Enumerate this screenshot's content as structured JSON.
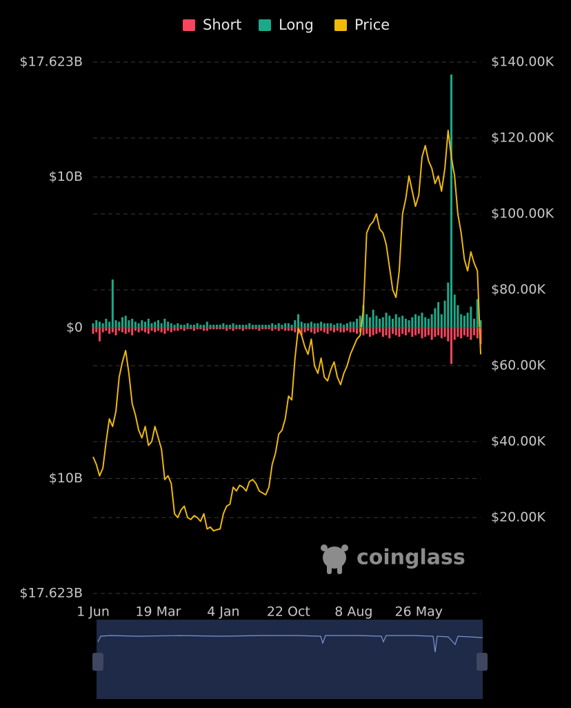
{
  "chart_data": {
    "type": "bar-line",
    "watermark": "coinglass",
    "categories": [
      "1 Jun",
      null,
      null,
      null,
      null,
      null,
      null,
      null,
      null,
      null,
      null,
      null,
      null,
      null,
      null,
      null,
      null,
      null,
      null,
      null,
      "19 Mar",
      null,
      null,
      null,
      null,
      null,
      null,
      null,
      null,
      null,
      null,
      null,
      null,
      null,
      null,
      null,
      null,
      null,
      null,
      null,
      "4 Jan",
      null,
      null,
      null,
      null,
      null,
      null,
      null,
      null,
      null,
      null,
      null,
      null,
      null,
      null,
      null,
      null,
      null,
      null,
      null,
      "22 Oct",
      null,
      null,
      null,
      null,
      null,
      null,
      null,
      null,
      null,
      null,
      null,
      null,
      null,
      null,
      null,
      null,
      null,
      null,
      null,
      "8 Aug",
      null,
      null,
      null,
      null,
      null,
      null,
      null,
      null,
      null,
      null,
      null,
      null,
      null,
      null,
      null,
      null,
      null,
      null,
      null,
      "26 May",
      null,
      null,
      null,
      null,
      null,
      null,
      null,
      null,
      null,
      null,
      null,
      null,
      null,
      null,
      null,
      null,
      null,
      null,
      null
    ],
    "series": [
      {
        "name": "Short",
        "color": "#f6465d",
        "axis": "y",
        "values": [
          -0.4,
          -0.3,
          -0.9,
          -0.3,
          -0.2,
          -0.4,
          -0.3,
          -0.5,
          -0.2,
          -0.3,
          -0.4,
          -0.3,
          -0.5,
          -0.2,
          -0.3,
          -0.2,
          -0.3,
          -0.4,
          -0.2,
          -0.3,
          -0.2,
          -0.3,
          -0.4,
          -0.2,
          -0.3,
          -0.2,
          -0.2,
          -0.1,
          -0.2,
          -0.1,
          -0.1,
          -0.2,
          -0.1,
          -0.1,
          -0.2,
          -0.2,
          -0.1,
          -0.1,
          -0.1,
          -0.1,
          -0.1,
          -0.2,
          -0.1,
          -0.2,
          -0.1,
          -0.1,
          -0.2,
          -0.1,
          -0.1,
          -0.1,
          -0.1,
          -0.2,
          -0.1,
          -0.1,
          -0.1,
          -0.2,
          -0.1,
          -0.2,
          -0.1,
          -0.2,
          -0.2,
          -0.2,
          -0.3,
          -0.4,
          -0.5,
          -0.3,
          -0.2,
          -0.3,
          -0.4,
          -0.3,
          -0.2,
          -0.3,
          -0.4,
          -0.2,
          -0.3,
          -0.2,
          -0.3,
          -0.3,
          -0.2,
          -0.3,
          -0.3,
          -0.4,
          -0.3,
          -0.5,
          -0.4,
          -0.6,
          -0.5,
          -0.4,
          -0.3,
          -0.6,
          -0.5,
          -0.7,
          -0.4,
          -0.5,
          -0.6,
          -0.4,
          -0.5,
          -0.3,
          -0.6,
          -0.5,
          -0.4,
          -0.7,
          -0.6,
          -0.5,
          -0.8,
          -0.6,
          -0.5,
          -0.7,
          -0.6,
          -0.9,
          -2.4,
          -0.8,
          -0.6,
          -0.7,
          -0.5,
          -0.6,
          -0.8,
          -0.5,
          -0.7,
          -1.1
        ]
      },
      {
        "name": "Long",
        "color": "#1ba98a",
        "axis": "y",
        "values": [
          0.3,
          0.5,
          0.4,
          0.3,
          0.6,
          0.4,
          3.2,
          0.5,
          0.4,
          0.7,
          0.8,
          0.5,
          0.6,
          0.4,
          0.3,
          0.5,
          0.4,
          0.6,
          0.3,
          0.4,
          0.5,
          0.3,
          0.6,
          0.4,
          0.3,
          0.2,
          0.3,
          0.2,
          0.2,
          0.3,
          0.2,
          0.2,
          0.3,
          0.2,
          0.2,
          0.4,
          0.2,
          0.2,
          0.2,
          0.2,
          0.3,
          0.2,
          0.2,
          0.3,
          0.2,
          0.2,
          0.2,
          0.2,
          0.3,
          0.2,
          0.2,
          0.2,
          0.2,
          0.2,
          0.2,
          0.3,
          0.2,
          0.3,
          0.2,
          0.3,
          0.3,
          0.2,
          0.5,
          0.9,
          0.4,
          0.3,
          0.3,
          0.4,
          0.3,
          0.3,
          0.4,
          0.3,
          0.3,
          0.3,
          0.2,
          0.3,
          0.3,
          0.2,
          0.3,
          0.4,
          0.4,
          0.6,
          0.8,
          1.5,
          0.9,
          0.7,
          1.2,
          0.8,
          0.6,
          0.7,
          1.0,
          0.8,
          0.6,
          0.9,
          0.7,
          0.8,
          0.6,
          0.5,
          0.7,
          0.9,
          0.8,
          1.0,
          0.7,
          0.6,
          0.9,
          1.3,
          1.7,
          0.9,
          1.8,
          3.0,
          16.8,
          2.2,
          1.5,
          0.9,
          0.8,
          1.0,
          1.4,
          0.6,
          1.9,
          0.5
        ]
      },
      {
        "name": "Price",
        "color": "#f0b90b",
        "axis": "y2",
        "values": [
          36000,
          34000,
          31000,
          33000,
          40000,
          46000,
          44000,
          48000,
          57000,
          61000,
          64000,
          58000,
          50000,
          47000,
          43000,
          41000,
          44000,
          39000,
          40000,
          44000,
          41000,
          38000,
          30000,
          31000,
          29000,
          21000,
          20000,
          22000,
          23000,
          20000,
          19500,
          20500,
          20000,
          19000,
          21000,
          17000,
          17500,
          16500,
          16800,
          17000,
          21000,
          23000,
          23500,
          28000,
          27000,
          28500,
          28000,
          27000,
          29500,
          30000,
          29000,
          27000,
          26500,
          26000,
          28000,
          34000,
          37000,
          42000,
          43000,
          46000,
          52000,
          51000,
          62000,
          70000,
          68000,
          65000,
          63000,
          67000,
          60000,
          58000,
          62000,
          57000,
          56000,
          59000,
          61000,
          57000,
          55000,
          58000,
          60000,
          63000,
          65000,
          67000,
          68000,
          75000,
          95000,
          97000,
          98000,
          100000,
          96000,
          95000,
          92000,
          86000,
          80000,
          78000,
          85000,
          100000,
          104000,
          110000,
          106000,
          102000,
          105000,
          115000,
          118000,
          114000,
          112000,
          108000,
          110000,
          106000,
          112000,
          122000,
          115000,
          110000,
          100000,
          95000,
          88000,
          85000,
          90000,
          87000,
          85000,
          63000
        ]
      }
    ],
    "ylim": [
      -17.623,
      17.623
    ],
    "yticks": [
      {
        "value": 17.623,
        "label": "$17.623B"
      },
      {
        "value": 10,
        "label": "$10B"
      },
      {
        "value": 0,
        "label": "$0"
      },
      {
        "value": -10,
        "label": "$10B"
      },
      {
        "value": -17.623,
        "label": "$17.623B"
      }
    ],
    "y2lim": [
      0,
      140000
    ],
    "y2ticks": [
      {
        "value": 140000,
        "label": "$140.00K"
      },
      {
        "value": 120000,
        "label": "$120.00K"
      },
      {
        "value": 100000,
        "label": "$100.00K"
      },
      {
        "value": 80000,
        "label": "$80.00K"
      },
      {
        "value": 60000,
        "label": "$60.00K"
      },
      {
        "value": 40000,
        "label": "$40.00K"
      },
      {
        "value": 20000,
        "label": "$20.00K"
      }
    ],
    "grid": true,
    "legend": "top"
  }
}
